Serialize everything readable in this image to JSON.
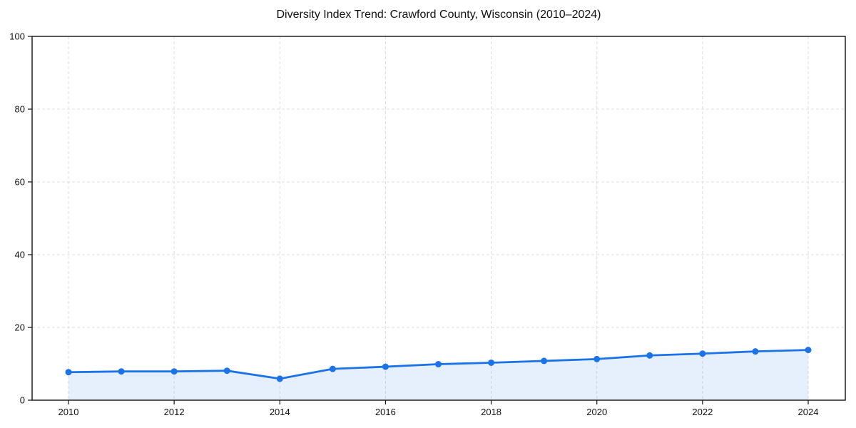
{
  "chart_data": {
    "type": "line",
    "title": "Diversity Index Trend: Crawford County, Wisconsin (2010–2024)",
    "x": [
      2010,
      2011,
      2012,
      2013,
      2014,
      2015,
      2016,
      2017,
      2018,
      2019,
      2020,
      2021,
      2022,
      2023,
      2024
    ],
    "series": [
      {
        "name": "Diversity Index",
        "values": [
          7.7,
          7.9,
          7.9,
          8.1,
          5.9,
          8.6,
          9.2,
          9.9,
          10.3,
          10.8,
          11.3,
          12.3,
          12.8,
          13.4,
          13.8
        ]
      }
    ],
    "xlabel": "",
    "ylabel": "",
    "ylim": [
      0,
      100
    ],
    "xticks": [
      2010,
      2012,
      2014,
      2016,
      2018,
      2020,
      2022,
      2024
    ],
    "yticks": [
      0,
      20,
      40,
      60,
      80,
      100
    ],
    "grid": true,
    "grid_style": "dashed",
    "legend": false,
    "marker": "circle",
    "area_fill": true,
    "colors": {
      "line": "#1a73e8",
      "marker": "#1a73e8",
      "area_fill": "rgba(26,115,232,0.11)",
      "grid": "#dedede",
      "spine": "#111111",
      "text": "#111111",
      "background": "#ffffff"
    }
  }
}
